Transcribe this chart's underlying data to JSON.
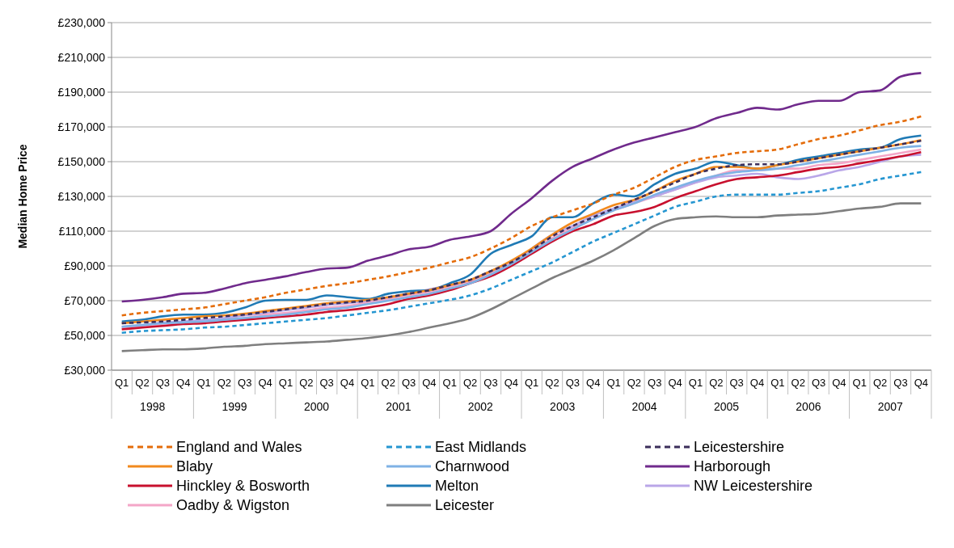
{
  "chart_data": {
    "type": "line",
    "ylabel": "Median Home Price",
    "categories": [
      "Q1",
      "Q2",
      "Q3",
      "Q4",
      "Q1",
      "Q2",
      "Q3",
      "Q4",
      "Q1",
      "Q2",
      "Q3",
      "Q4",
      "Q1",
      "Q2",
      "Q3",
      "Q4",
      "Q1",
      "Q2",
      "Q3",
      "Q4",
      "Q1",
      "Q2",
      "Q3",
      "Q4",
      "Q1",
      "Q2",
      "Q3",
      "Q4",
      "Q1",
      "Q2",
      "Q3",
      "Q4",
      "Q1",
      "Q2",
      "Q3",
      "Q4",
      "Q1",
      "Q2",
      "Q3",
      "Q4"
    ],
    "annotations": [
      "1998",
      "1999",
      "2000",
      "2001",
      "2002",
      "2003",
      "2004",
      "2005",
      "2006",
      "2007"
    ],
    "ylim": [
      30000,
      230000
    ],
    "yticks": [
      {
        "value": 30000,
        "label": "£30,000"
      },
      {
        "value": 50000,
        "label": "£50,000"
      },
      {
        "value": 70000,
        "label": "£70,000"
      },
      {
        "value": 90000,
        "label": "£90,000"
      },
      {
        "value": 110000,
        "label": "£110,000"
      },
      {
        "value": 130000,
        "label": "£130,000"
      },
      {
        "value": 150000,
        "label": "£150,000"
      },
      {
        "value": 170000,
        "label": "£170,000"
      },
      {
        "value": 190000,
        "label": "£190,000"
      },
      {
        "value": 210000,
        "label": "£210,000"
      },
      {
        "value": 230000,
        "label": "£230,000"
      }
    ],
    "grid": "y",
    "legend": "bottom",
    "series": [
      {
        "name": "England and Wales",
        "color": "#e46c0a",
        "line_style": "dashed",
        "values": [
          61500,
          63000,
          64000,
          65000,
          66000,
          68000,
          70000,
          72000,
          74500,
          76500,
          78500,
          80000,
          82000,
          84000,
          86500,
          89000,
          92000,
          95000,
          100000,
          106000,
          113000,
          118000,
          122000,
          126000,
          131000,
          135000,
          141000,
          147000,
          151000,
          153000,
          155000,
          156000,
          157000,
          160000,
          163000,
          165000,
          168000,
          171000,
          173000,
          176000
        ]
      },
      {
        "name": "East Midlands",
        "color": "#2596d1",
        "line_style": "dashed",
        "values": [
          51500,
          52500,
          53000,
          53500,
          54500,
          55000,
          56000,
          57000,
          58000,
          59000,
          60000,
          61500,
          63000,
          64500,
          66500,
          68500,
          70500,
          73000,
          77000,
          82000,
          87000,
          92000,
          98000,
          104000,
          109000,
          114000,
          119000,
          124000,
          127000,
          130000,
          131000,
          131000,
          131000,
          132000,
          133000,
          135000,
          137000,
          140000,
          142000,
          144000
        ]
      },
      {
        "name": "Leicestershire",
        "color": "#3b2e5a",
        "line_style": "dashed",
        "values": [
          57000,
          57500,
          58000,
          59000,
          60000,
          61000,
          62000,
          63500,
          65000,
          66500,
          68000,
          69000,
          70000,
          72000,
          74000,
          76000,
          79000,
          82000,
          87000,
          92000,
          99000,
          107000,
          113000,
          118000,
          123000,
          128000,
          133000,
          138000,
          143000,
          146000,
          148000,
          148500,
          148500,
          150000,
          152000,
          154000,
          156000,
          158000,
          160000,
          162000
        ]
      },
      {
        "name": "Blaby",
        "color": "#f28a1e",
        "line_style": "solid",
        "values": [
          57000,
          58000,
          59000,
          60000,
          61000,
          61500,
          62500,
          64000,
          65500,
          67000,
          68500,
          69500,
          70500,
          72000,
          74000,
          76000,
          79000,
          82000,
          87000,
          93000,
          100000,
          108000,
          115000,
          120000,
          125000,
          128000,
          133000,
          139000,
          143000,
          147000,
          147000,
          146000,
          148000,
          150000,
          152000,
          154000,
          156000,
          158000,
          160000,
          162500
        ]
      },
      {
        "name": "Charnwood",
        "color": "#7fb2e5",
        "line_style": "solid",
        "values": [
          55000,
          56000,
          57000,
          57500,
          58000,
          59000,
          60000,
          61000,
          62000,
          63500,
          65000,
          66000,
          68000,
          70000,
          72000,
          74000,
          77000,
          80000,
          85000,
          91000,
          98000,
          105000,
          111000,
          117000,
          122000,
          126000,
          131000,
          135000,
          139000,
          142000,
          144000,
          145000,
          146000,
          148000,
          150000,
          152000,
          154000,
          156000,
          158000,
          159000
        ]
      },
      {
        "name": "Harborough",
        "color": "#702a8c",
        "line_style": "solid",
        "values": [
          69500,
          70500,
          72000,
          74000,
          74500,
          77000,
          80000,
          82000,
          84000,
          86500,
          88500,
          89000,
          93000,
          96000,
          99500,
          101000,
          105000,
          107000,
          110000,
          120000,
          129000,
          139000,
          147000,
          152000,
          157000,
          161000,
          164000,
          167000,
          170000,
          175000,
          178000,
          181000,
          180000,
          183000,
          185000,
          185000,
          190000,
          191000,
          199000,
          201000
        ]
      },
      {
        "name": "Hinckley & Bosworth",
        "color": "#c8102e",
        "line_style": "solid",
        "values": [
          53500,
          54500,
          55500,
          56500,
          57000,
          58000,
          59000,
          60000,
          61000,
          62000,
          63500,
          64500,
          66000,
          68000,
          71000,
          73000,
          76000,
          80000,
          84000,
          90000,
          97000,
          104000,
          110000,
          114000,
          119000,
          121000,
          124000,
          129000,
          133000,
          137000,
          140000,
          141000,
          142000,
          144000,
          146000,
          147000,
          149000,
          151000,
          153000,
          155500
        ]
      },
      {
        "name": "Melton",
        "color": "#1f7ab5",
        "line_style": "solid",
        "values": [
          58000,
          59000,
          61000,
          62000,
          62000,
          63000,
          66000,
          70000,
          70500,
          70500,
          73000,
          72000,
          71000,
          74000,
          75500,
          76000,
          80000,
          85000,
          97000,
          102000,
          107000,
          118000,
          118000,
          126000,
          131000,
          130000,
          137000,
          143000,
          146000,
          150000,
          148000,
          146000,
          148000,
          151000,
          153000,
          155000,
          157000,
          158000,
          163000,
          165000
        ]
      },
      {
        "name": "NW Leicestershire",
        "color": "#b9a6e8",
        "line_style": "solid",
        "values": [
          55000,
          56000,
          57500,
          58000,
          59000,
          60000,
          61500,
          63000,
          64500,
          66000,
          67500,
          68500,
          70000,
          72000,
          74000,
          76500,
          79000,
          82000,
          87000,
          91000,
          100000,
          108000,
          113000,
          119000,
          123000,
          127000,
          130000,
          134000,
          138000,
          141000,
          142000,
          143000,
          141000,
          140000,
          142000,
          145000,
          147000,
          150000,
          153000,
          154000
        ]
      },
      {
        "name": "Oadby & Wigston",
        "color": "#f4a6c8",
        "line_style": "solid",
        "values": [
          54000,
          55000,
          56000,
          57000,
          58000,
          59000,
          60000,
          62000,
          63000,
          64500,
          66000,
          67000,
          69000,
          71000,
          73000,
          75000,
          78000,
          81000,
          86000,
          92000,
          99000,
          106000,
          112000,
          117000,
          122000,
          126000,
          130000,
          134000,
          138000,
          142000,
          145000,
          145000,
          146000,
          146000,
          148000,
          149000,
          151000,
          153000,
          155000,
          157000
        ]
      },
      {
        "name": "Leicester",
        "color": "#7f7f7f",
        "line_style": "solid",
        "values": [
          41000,
          41500,
          42000,
          42000,
          42500,
          43500,
          44000,
          45000,
          45500,
          46000,
          46500,
          47500,
          48500,
          50000,
          52000,
          54500,
          57000,
          60000,
          65000,
          71000,
          77000,
          83000,
          88000,
          93000,
          99000,
          106000,
          113000,
          117000,
          118000,
          118500,
          118000,
          118000,
          119000,
          119500,
          120000,
          121500,
          123000,
          124000,
          126000,
          126000
        ]
      }
    ]
  }
}
